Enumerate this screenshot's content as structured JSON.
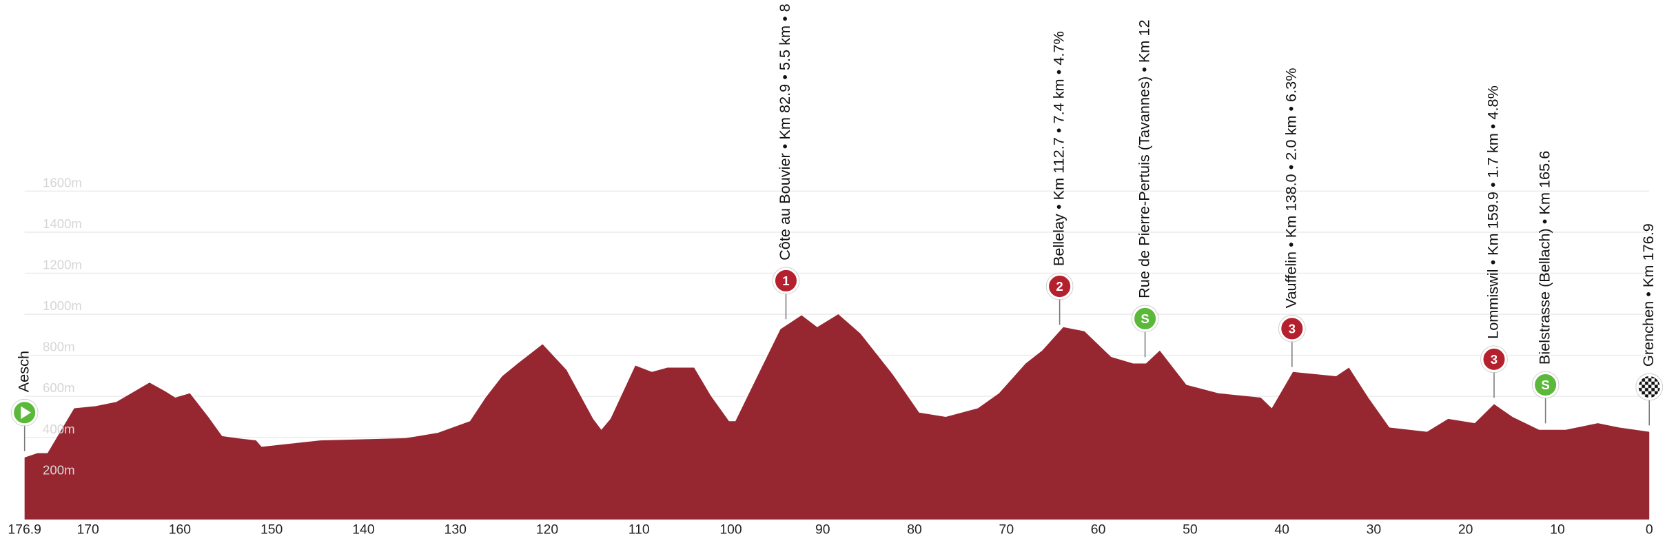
{
  "chart_data": {
    "type": "area",
    "x": [
      176.9,
      175.5,
      174.4,
      171.5,
      169.2,
      166.9,
      163.3,
      161.6,
      160.5,
      158.9,
      156.9,
      155.4,
      153.8,
      151.7,
      151.1,
      144.7,
      135.4,
      131.9,
      128.4,
      126.7,
      124.9,
      123.2,
      120.5,
      117.9,
      115.0,
      114.1,
      113.1,
      110.4,
      108.6,
      106.9,
      104.0,
      102.2,
      100.2,
      99.5,
      97.0,
      94.6,
      92.3,
      90.6,
      88.3,
      85.9,
      82.4,
      79.5,
      76.6,
      73.1,
      70.8,
      67.9,
      66.1,
      63.8,
      61.5,
      58.6,
      56.2,
      54.8,
      53.3,
      50.4,
      46.9,
      42.3,
      41.1,
      38.8,
      34.1,
      32.7,
      30.6,
      28.3,
      24.2,
      21.9,
      19.0,
      16.9,
      14.9,
      12.0,
      9.1,
      5.6,
      3.3,
      0
    ],
    "values": [
      302,
      323,
      323,
      542,
      552,
      573,
      667,
      625,
      594,
      615,
      500,
      406,
      396,
      385,
      354,
      385,
      396,
      422,
      479,
      594,
      698,
      760,
      854,
      729,
      490,
      437,
      490,
      750,
      719,
      740,
      740,
      604,
      479,
      479,
      708,
      927,
      995,
      937,
      1000,
      906,
      708,
      521,
      500,
      542,
      615,
      760,
      823,
      937,
      917,
      792,
      760,
      760,
      823,
      656,
      615,
      594,
      542,
      719,
      698,
      740,
      594,
      448,
      427,
      490,
      469,
      562,
      500,
      437,
      437,
      469,
      448,
      427
    ],
    "color": "#962630",
    "xlim": [
      176.9,
      0
    ],
    "xticks": [
      176.9,
      170,
      160,
      150,
      140,
      130,
      120,
      110,
      100,
      90,
      80,
      70,
      60,
      50,
      40,
      30,
      20,
      10,
      0
    ],
    "ylim": [
      0,
      1600
    ],
    "yticks": [
      {
        "value": 200,
        "label": "200m"
      },
      {
        "value": 400,
        "label": "400m"
      },
      {
        "value": 600,
        "label": "600m"
      },
      {
        "value": 800,
        "label": "800m"
      },
      {
        "value": 1000,
        "label": "1000m"
      },
      {
        "value": 1200,
        "label": "1200m"
      },
      {
        "value": 1400,
        "label": "1400m"
      },
      {
        "value": 1600,
        "label": "1600m"
      }
    ],
    "grid": true,
    "markers": [
      {
        "x": 176.9,
        "kind": "start",
        "label": "Aesch"
      },
      {
        "x": 94.0,
        "kind": "kom",
        "badge": "1",
        "label": "Côte au Bouvier • Km 82.9 • 5.5 km • 8"
      },
      {
        "x": 64.2,
        "kind": "kom",
        "badge": "2",
        "label": "Bellelay • Km 112.7 • 7.4 km • 4.7%"
      },
      {
        "x": 54.9,
        "kind": "sprint",
        "badge": "S",
        "label": "Rue de Pierre-Pertuis (Tavannes) • Km 12"
      },
      {
        "x": 38.9,
        "kind": "kom",
        "badge": "3",
        "label": "Vauffelin • Km 138.0 • 2.0 km • 6.3%"
      },
      {
        "x": 16.9,
        "kind": "kom",
        "badge": "3",
        "label": "Lommiswil • Km 159.9 • 1.7 km • 4.8%"
      },
      {
        "x": 11.3,
        "kind": "sprint",
        "badge": "S",
        "label": "Bielstrasse (Bellach) • Km 165.6"
      },
      {
        "x": 0,
        "kind": "finish",
        "label": "Grenchen • Km 176.9"
      }
    ]
  }
}
